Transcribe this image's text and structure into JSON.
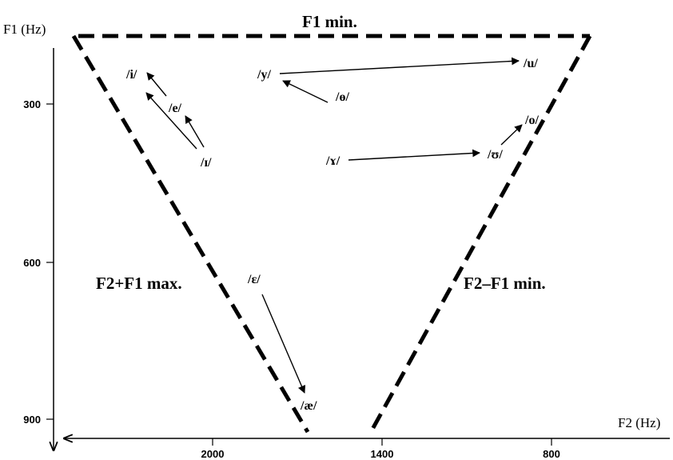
{
  "axes": {
    "y_title": "F1 (Hz)",
    "x_title": "F2 (Hz)",
    "y_ticks": [
      "300",
      "600",
      "900"
    ],
    "x_ticks": [
      "2000",
      "1400",
      "800"
    ]
  },
  "region_labels": {
    "top": "F1 min.",
    "left": "F2+F1 max.",
    "right": "F2–F1 min."
  },
  "vowels": {
    "i": "/i/",
    "e": "/e/",
    "I": "/ɪ/",
    "y": "/y/",
    "o_bar": "/ɵ/",
    "u": "/u/",
    "o": "/o/",
    "upsilon": "/ʊ/",
    "gamma": "/ɤ/",
    "epsilon": "/ɛ/",
    "ae": "/æ/"
  },
  "colors": {
    "ink": "#000000",
    "background": "#ffffff"
  }
}
